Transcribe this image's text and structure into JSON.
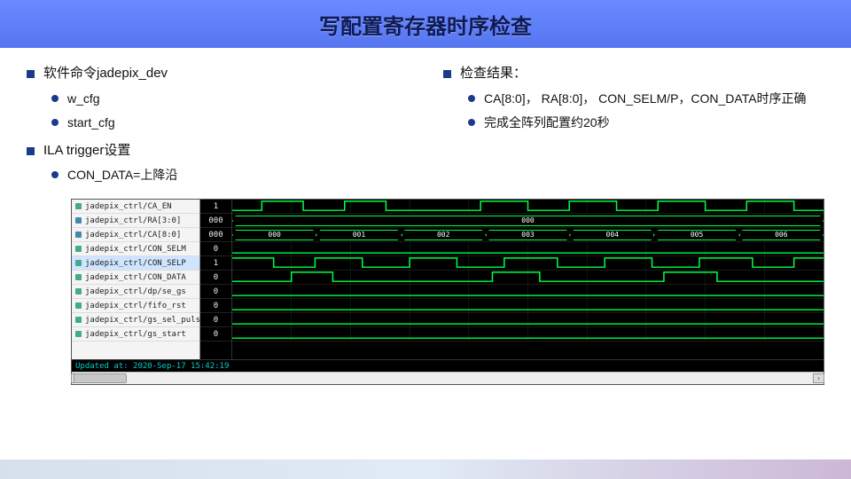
{
  "header": {
    "title": "写配置寄存器时序检查"
  },
  "left_col": {
    "item1": {
      "label": "软件命令jadepix_dev"
    },
    "item1_sub": [
      {
        "label": "w_cfg"
      },
      {
        "label": "start_cfg"
      }
    ],
    "item2": {
      "label": "ILA trigger设置"
    },
    "item2_sub": [
      {
        "label": "CON_DATA=上降沿"
      }
    ]
  },
  "right_col": {
    "item1": {
      "label": "检查结果："
    },
    "item1_sub": [
      {
        "label": "CA[8:0]，  RA[8:0]，  CON_SELM/P，CON_DATA时序正确"
      },
      {
        "label": "完成全阵列配置约20秒"
      }
    ]
  },
  "waveform": {
    "timestamp": "Updated at: 2020-Sep-17 15:42:19",
    "colors": {
      "bg": "#000000",
      "trace": "#00ff44",
      "text": "#ffffff",
      "grid": "#0a3"
    },
    "bus_labels": [
      "000",
      "001",
      "002",
      "003",
      "004",
      "005",
      "006"
    ],
    "ra_label": "000",
    "signals": [
      {
        "name": "jadepix_ctrl/CA_EN",
        "value": "1",
        "type": "bit",
        "trace": [
          [
            0,
            0
          ],
          [
            0.05,
            1
          ],
          [
            0.12,
            0
          ],
          [
            0.19,
            1
          ],
          [
            0.26,
            0
          ],
          [
            0.34,
            0
          ],
          [
            0.42,
            1
          ],
          [
            0.5,
            0
          ],
          [
            0.57,
            1
          ],
          [
            0.65,
            0
          ],
          [
            0.72,
            1
          ],
          [
            0.8,
            0
          ],
          [
            0.87,
            1
          ],
          [
            0.95,
            0
          ]
        ]
      },
      {
        "name": "jadepix_ctrl/RA[3:0]",
        "value": "000",
        "type": "bus",
        "bus": "full",
        "label": "000"
      },
      {
        "name": "jadepix_ctrl/CA[8:0]",
        "value": "000",
        "type": "bus",
        "bus": "seg"
      },
      {
        "name": "jadepix_ctrl/CON_SELM",
        "value": "0",
        "type": "bit",
        "trace": [
          [
            0,
            0
          ]
        ]
      },
      {
        "name": "jadepix_ctrl/CON_SELP",
        "value": "1",
        "type": "bit",
        "selected": true,
        "trace": [
          [
            0,
            1
          ],
          [
            0.07,
            0
          ],
          [
            0.14,
            1
          ],
          [
            0.22,
            0
          ],
          [
            0.3,
            1
          ],
          [
            0.38,
            0
          ],
          [
            0.46,
            1
          ],
          [
            0.55,
            0
          ],
          [
            0.63,
            1
          ],
          [
            0.71,
            0
          ],
          [
            0.79,
            1
          ],
          [
            0.88,
            0
          ],
          [
            0.95,
            1
          ]
        ]
      },
      {
        "name": "jadepix_ctrl/CON_DATA",
        "value": "0",
        "type": "bit",
        "trace": [
          [
            0,
            0
          ],
          [
            0.1,
            1
          ],
          [
            0.17,
            0
          ],
          [
            0.44,
            1
          ],
          [
            0.52,
            0
          ],
          [
            0.73,
            1
          ],
          [
            0.82,
            0
          ]
        ]
      },
      {
        "name": "jadepix_ctrl/dp/se_gs",
        "value": "0",
        "type": "bit",
        "trace": [
          [
            0,
            0
          ]
        ]
      },
      {
        "name": "jadepix_ctrl/fifo_rst",
        "value": "0",
        "type": "bit",
        "trace": [
          [
            0,
            0
          ]
        ]
      },
      {
        "name": "jadepix_ctrl/gs_sel_pulse",
        "value": "0",
        "type": "bit",
        "trace": [
          [
            0,
            0
          ]
        ]
      },
      {
        "name": "jadepix_ctrl/gs_start",
        "value": "0",
        "type": "bit",
        "trace": [
          [
            0,
            0
          ]
        ]
      }
    ]
  }
}
